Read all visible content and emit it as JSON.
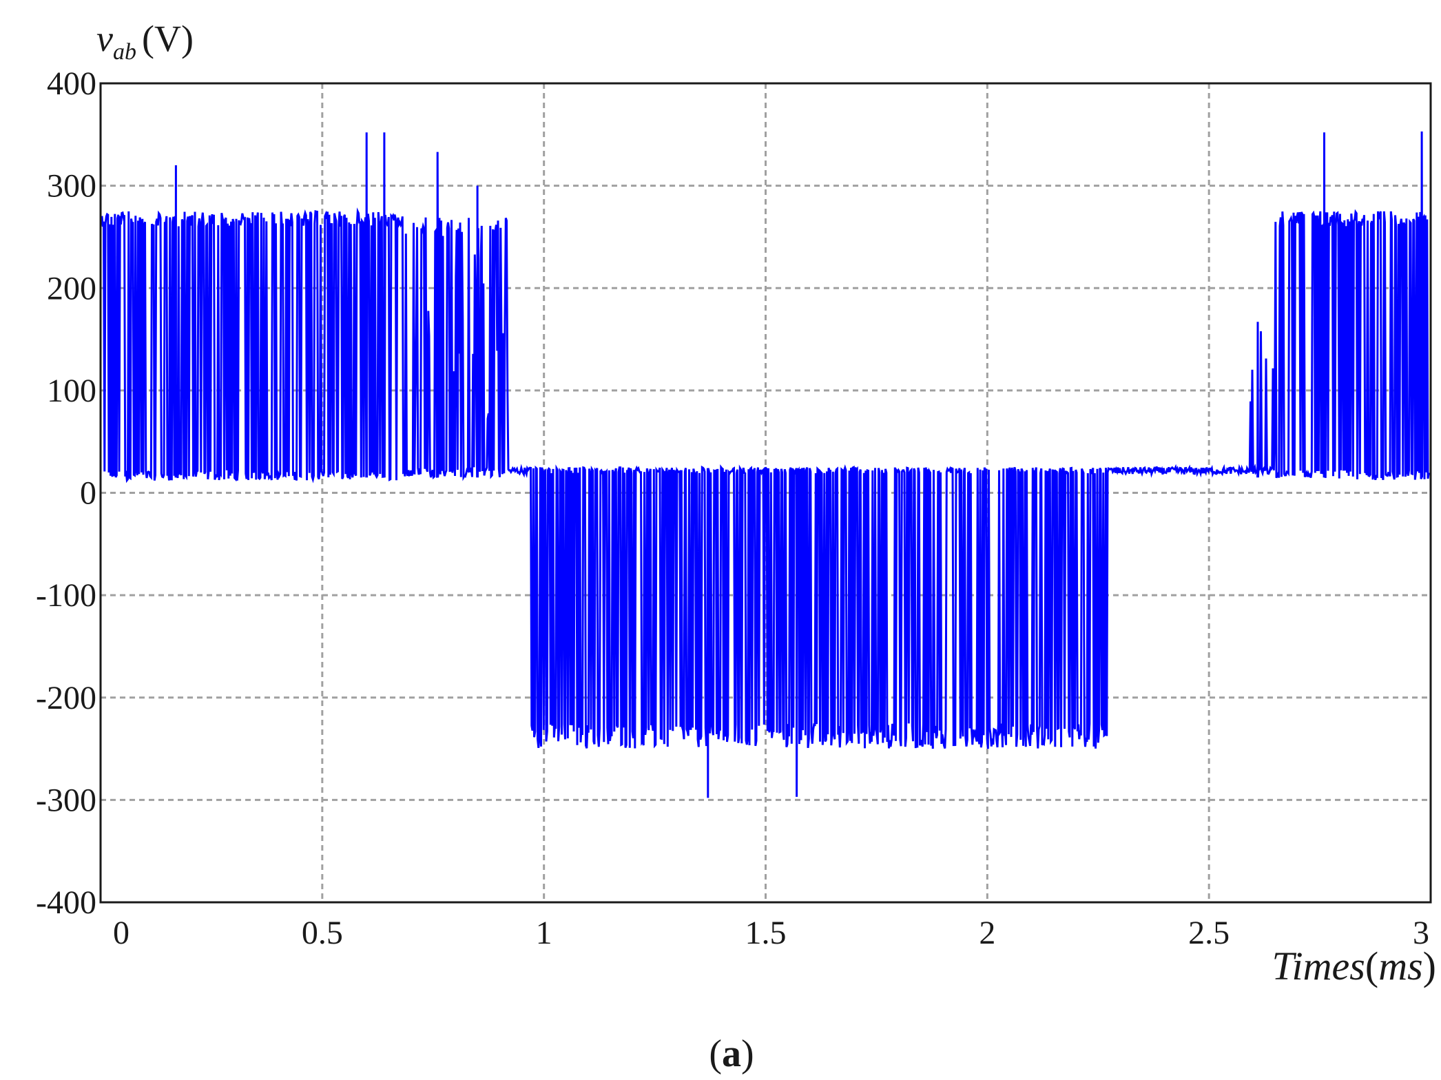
{
  "chart_data": {
    "type": "line",
    "ylabel": {
      "symbol": "v",
      "subscript": "ab",
      "unit": "(V)"
    },
    "xlabel": {
      "main": "Times",
      "unit": "ms"
    },
    "caption": {
      "open": "(",
      "letter": "a",
      "close": ")"
    },
    "xlim": [
      0,
      3
    ],
    "ylim": [
      -400,
      400
    ],
    "x_ticks": [
      0,
      0.5,
      1,
      1.5,
      2,
      2.5,
      3
    ],
    "x_tick_labels": [
      "0",
      "0.5",
      "1",
      "1.5",
      "2",
      "2.5",
      "3"
    ],
    "y_ticks": [
      400,
      300,
      200,
      100,
      0,
      -100,
      -200,
      -300,
      -400
    ],
    "y_tick_labels": [
      "400",
      "300",
      "200",
      "100",
      "0",
      "-100",
      "-200",
      "-300",
      "-400"
    ],
    "grid": true,
    "line_color": "#0000ff",
    "grid_color": "#a0a0a0",
    "series": [
      {
        "description_segments": [
          {
            "x_start": 0.0,
            "x_end": 0.68,
            "low": 12,
            "high": 275,
            "state": "positive_switching"
          },
          {
            "x_start": 0.68,
            "x_end": 0.92,
            "low": 15,
            "high": 270,
            "state": "positive_switching_sparse"
          },
          {
            "x_start": 0.92,
            "x_end": 0.97,
            "low": 18,
            "high": 25,
            "state": "near_zero"
          },
          {
            "x_start": 0.97,
            "x_end": 2.27,
            "low": -240,
            "high": 25,
            "state": "negative_switching"
          },
          {
            "x_start": 2.27,
            "x_end": 2.58,
            "low": 18,
            "high": 25,
            "state": "near_zero"
          },
          {
            "x_start": 2.58,
            "x_end": 2.65,
            "low": 18,
            "high": 170,
            "state": "transition"
          },
          {
            "x_start": 2.65,
            "x_end": 3.0,
            "low": 12,
            "high": 275,
            "state": "positive_switching"
          }
        ],
        "notable_peaks": [
          {
            "x": 0.17,
            "y": 320
          },
          {
            "x": 0.6,
            "y": 352
          },
          {
            "x": 0.64,
            "y": 352
          },
          {
            "x": 0.76,
            "y": 333
          },
          {
            "x": 0.85,
            "y": 300
          },
          {
            "x": 1.37,
            "y": -298
          },
          {
            "x": 1.57,
            "y": -297
          },
          {
            "x": 2.61,
            "y": 167
          },
          {
            "x": 2.76,
            "y": 352
          },
          {
            "x": 2.98,
            "y": 353
          }
        ]
      }
    ]
  }
}
